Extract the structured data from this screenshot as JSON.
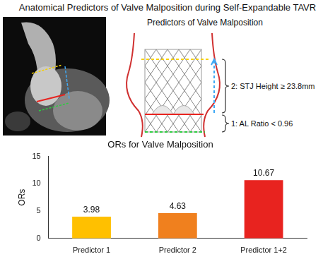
{
  "title": "Anatomical Predictors of Valve Malposition during Self-Expandable TAVR",
  "diagram": {
    "title": "Predictors of Valve Malposition",
    "annotations": [
      "2: STJ Height ≥ 23.8mm",
      "1: AL Ratio < 0.96"
    ]
  },
  "chart_data": {
    "type": "bar",
    "title": "ORs for Valve Malposition",
    "ylabel": "ORs",
    "categories": [
      "Predictor 1",
      "Predictor 2",
      "Predictor 1+2"
    ],
    "values": [
      3.98,
      4.63,
      10.67
    ],
    "colors": [
      "#ffc000",
      "#f0801e",
      "#e8231f"
    ],
    "ylim": [
      0,
      15
    ],
    "yticks": [
      0,
      5,
      10,
      15
    ],
    "grid": false,
    "data_labels": true
  }
}
